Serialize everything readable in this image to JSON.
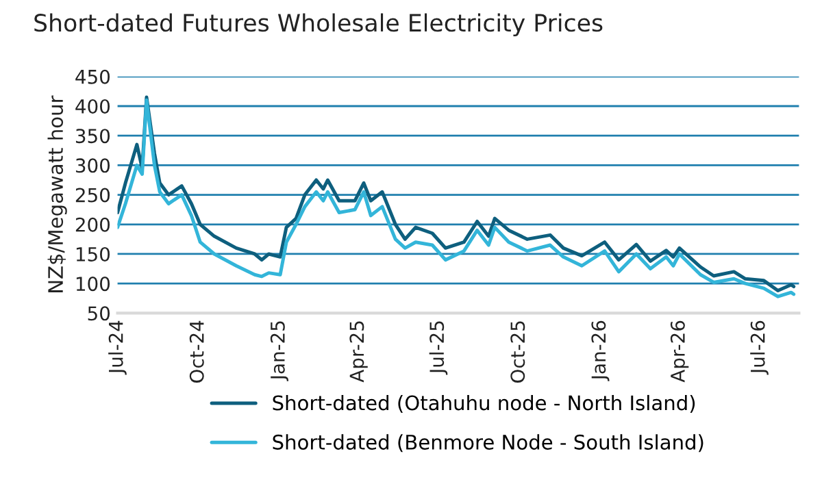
{
  "chart_data": {
    "type": "line",
    "title": "Short-dated Futures Wholesale Electricity Prices",
    "ylabel": "NZ$/Megawatt hour",
    "x": [
      "2024-07-01",
      "2024-07-10",
      "2024-07-23",
      "2024-07-29",
      "2024-08-03",
      "2024-08-12",
      "2024-08-18",
      "2024-08-28",
      "2024-09-12",
      "2024-09-23",
      "2024-10-03",
      "2024-10-19",
      "2024-11-13",
      "2024-12-04",
      "2024-12-12",
      "2024-12-20",
      "2025-01-02",
      "2025-01-09",
      "2025-01-20",
      "2025-01-30",
      "2025-02-12",
      "2025-02-20",
      "2025-02-25",
      "2025-03-10",
      "2025-03-28",
      "2025-04-07",
      "2025-04-15",
      "2025-04-28",
      "2025-05-13",
      "2025-05-24",
      "2025-06-05",
      "2025-06-24",
      "2025-07-09",
      "2025-07-30",
      "2025-08-14",
      "2025-08-27",
      "2025-09-03",
      "2025-09-19",
      "2025-10-10",
      "2025-11-05",
      "2025-11-20",
      "2025-12-11",
      "2026-01-06",
      "2026-01-22",
      "2026-02-11",
      "2026-02-27",
      "2026-03-17",
      "2026-03-25",
      "2026-04-01",
      "2026-04-25",
      "2026-05-10",
      "2026-06-02",
      "2026-06-15",
      "2026-07-06",
      "2026-07-22",
      "2026-08-06",
      "2026-08-09"
    ],
    "series": [
      {
        "name": "Short-dated (Otahuhu node - North Island)",
        "color": "#0e5f7e",
        "values": [
          220,
          270,
          335,
          295,
          415,
          320,
          270,
          250,
          265,
          235,
          200,
          180,
          160,
          150,
          140,
          150,
          145,
          195,
          210,
          250,
          275,
          260,
          275,
          240,
          240,
          270,
          240,
          255,
          200,
          175,
          195,
          185,
          160,
          170,
          205,
          180,
          210,
          190,
          175,
          182,
          160,
          147,
          170,
          140,
          166,
          138,
          156,
          145,
          160,
          128,
          113,
          120,
          108,
          105,
          88,
          98,
          95
        ]
      },
      {
        "name": "Short-dated (Benmore Node - South Island)",
        "color": "#33b5d9",
        "values": [
          195,
          235,
          300,
          285,
          410,
          300,
          255,
          235,
          250,
          215,
          170,
          150,
          130,
          115,
          112,
          118,
          115,
          170,
          200,
          230,
          255,
          240,
          255,
          220,
          225,
          255,
          215,
          230,
          175,
          160,
          170,
          165,
          140,
          155,
          190,
          165,
          195,
          170,
          155,
          165,
          145,
          130,
          155,
          120,
          150,
          125,
          145,
          130,
          150,
          115,
          102,
          108,
          100,
          92,
          78,
          85,
          82
        ]
      }
    ],
    "xlim": [
      "2024-07-01",
      "2026-08-15"
    ],
    "xticks": [
      {
        "value": "2024-07-01",
        "label": "Jul-24"
      },
      {
        "value": "2024-10-01",
        "label": "Oct-24"
      },
      {
        "value": "2025-01-01",
        "label": "Jan-25"
      },
      {
        "value": "2025-04-01",
        "label": "Apr-25"
      },
      {
        "value": "2025-07-01",
        "label": "Jul-25"
      },
      {
        "value": "2025-10-01",
        "label": "Oct-25"
      },
      {
        "value": "2026-01-01",
        "label": "Jan-26"
      },
      {
        "value": "2026-04-01",
        "label": "Apr-26"
      },
      {
        "value": "2026-07-01",
        "label": "Jul-26"
      }
    ],
    "ylim": [
      50,
      450
    ],
    "yticks": [
      50,
      100,
      150,
      200,
      250,
      300,
      350,
      400,
      450
    ],
    "grid": "y",
    "legend": "bottom",
    "marker": "none",
    "line_style": "solid"
  }
}
